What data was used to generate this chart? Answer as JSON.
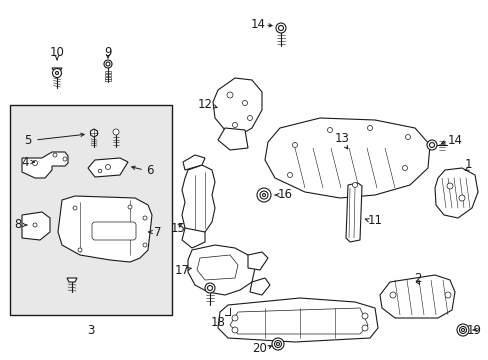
{
  "bg_color": "#ffffff",
  "box_bg": "#e0e0e0",
  "lc": "#1a1a1a",
  "figsize": [
    4.89,
    3.6
  ],
  "dpi": 100,
  "fs": 7.5,
  "fs_label": 8.5
}
